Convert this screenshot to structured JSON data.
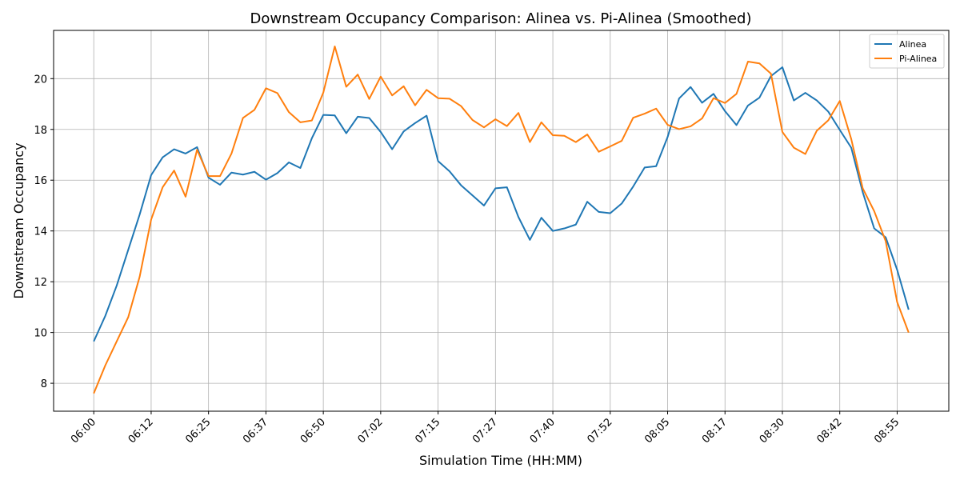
{
  "chart_data": {
    "type": "line",
    "title": "Downstream Occupancy Comparison: Alinea vs. Pi-Alinea (Smoothed)",
    "xlabel": "Simulation Time (HH:MM)",
    "ylabel": "Downstream Occupancy",
    "x_tick_labels": [
      "06:00",
      "06:12",
      "06:25",
      "06:37",
      "06:50",
      "07:02",
      "07:15",
      "07:27",
      "07:40",
      "07:52",
      "08:05",
      "08:17",
      "08:30",
      "08:42",
      "08:55"
    ],
    "y_ticks": [
      8,
      10,
      12,
      14,
      16,
      18,
      20
    ],
    "xlim": [
      -3.5,
      74.5
    ],
    "ylim": [
      6.9,
      21.9
    ],
    "grid": true,
    "legend_position": "top-right",
    "series": [
      {
        "name": "Alinea",
        "color": "#1f77b4",
        "values": [
          9.65,
          10.65,
          11.85,
          13.25,
          14.65,
          16.2,
          16.9,
          17.22,
          17.05,
          17.3,
          16.1,
          15.82,
          16.3,
          16.22,
          16.33,
          16.02,
          16.28,
          16.7,
          16.48,
          17.65,
          18.57,
          18.55,
          17.85,
          18.5,
          18.45,
          17.9,
          17.22,
          17.92,
          18.25,
          18.54,
          16.75,
          16.35,
          15.8,
          15.4,
          15.0,
          15.68,
          15.72,
          14.55,
          13.65,
          14.52,
          14.0,
          14.1,
          14.25,
          15.15,
          14.75,
          14.7,
          15.08,
          15.75,
          16.5,
          16.55,
          17.7,
          19.22,
          19.67,
          19.05,
          19.4,
          18.72,
          18.17,
          18.94,
          19.25,
          20.1,
          20.45,
          19.14,
          19.44,
          19.14,
          18.7,
          17.98,
          17.28,
          15.53,
          14.1,
          13.75,
          12.47,
          10.9
        ]
      },
      {
        "name": "Pi-Alinea",
        "color": "#ff7f0e",
        "values": [
          7.6,
          8.7,
          9.65,
          10.6,
          12.2,
          14.45,
          15.72,
          16.38,
          15.35,
          17.2,
          16.16,
          16.16,
          17.05,
          18.45,
          18.77,
          19.62,
          19.43,
          18.68,
          18.28,
          18.35,
          19.45,
          21.27,
          19.68,
          20.16,
          19.2,
          20.08,
          19.34,
          19.7,
          18.95,
          19.56,
          19.23,
          19.21,
          18.92,
          18.37,
          18.08,
          18.4,
          18.13,
          18.65,
          17.5,
          18.28,
          17.77,
          17.75,
          17.5,
          17.8,
          17.12,
          17.33,
          17.55,
          18.46,
          18.62,
          18.82,
          18.18,
          18.01,
          18.12,
          18.43,
          19.23,
          19.04,
          19.4,
          20.67,
          20.6,
          20.2,
          17.9,
          17.28,
          17.03,
          17.95,
          18.36,
          19.12,
          17.62,
          15.68,
          14.78,
          13.6,
          11.2,
          10.0
        ]
      }
    ]
  }
}
